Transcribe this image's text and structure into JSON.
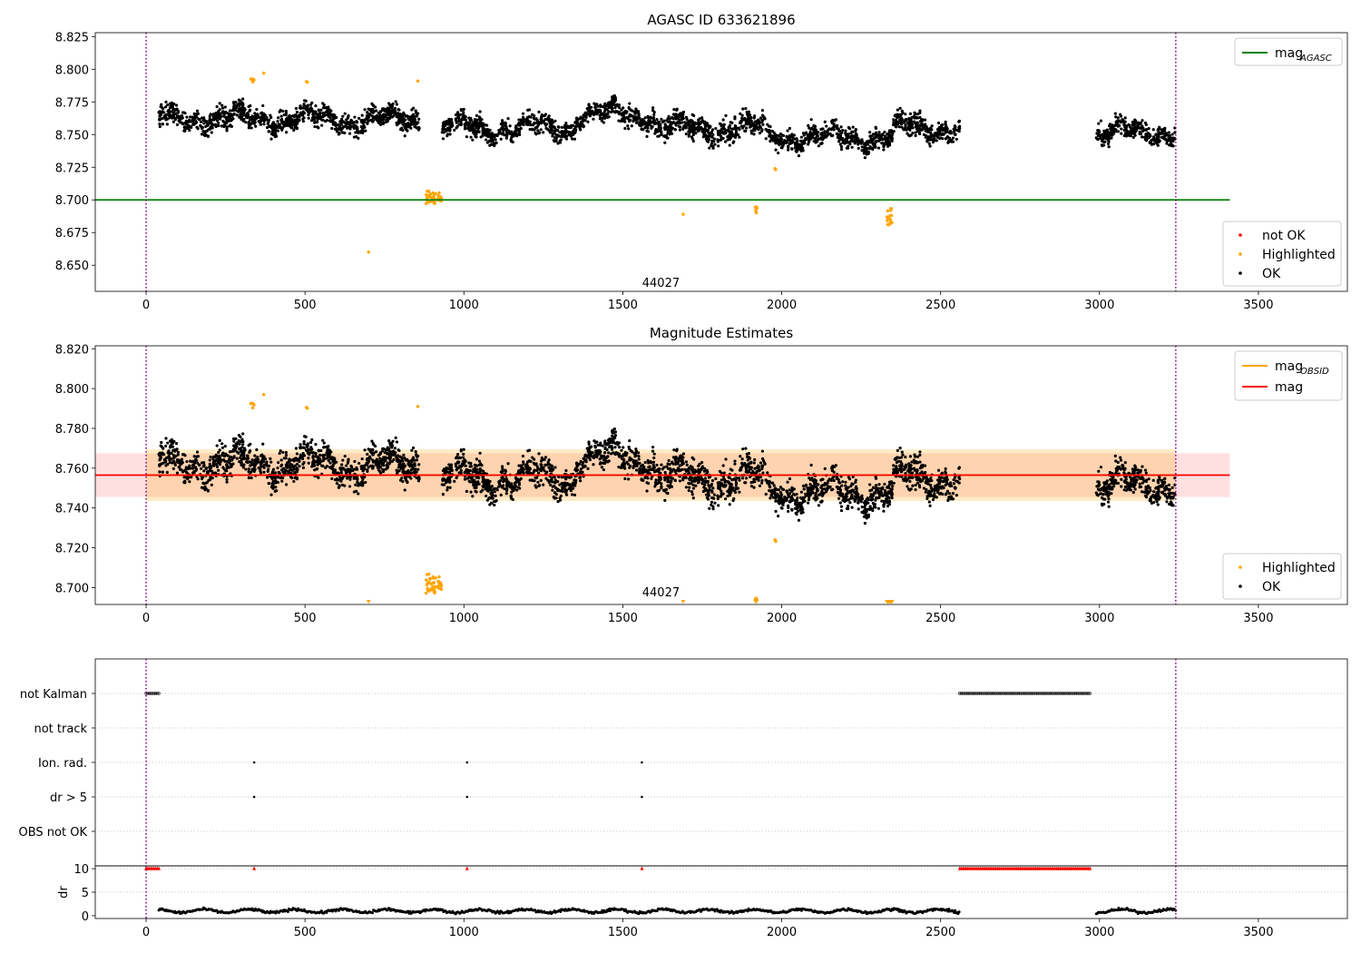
{
  "chart_data": [
    {
      "type": "scatter",
      "title": "AGASC ID 633621896",
      "xlim": [
        -160,
        3780
      ],
      "ylim": [
        8.63,
        8.828
      ],
      "xticks": [
        0,
        500,
        1000,
        1500,
        2000,
        2500,
        3000,
        3500
      ],
      "yticks": [
        8.65,
        8.675,
        8.7,
        8.725,
        8.75,
        8.775,
        8.8,
        8.825
      ],
      "ytick_labels": [
        "8.650",
        "8.675",
        "8.700",
        "8.725",
        "8.750",
        "8.775",
        "8.800",
        "8.825"
      ],
      "obsid_boundaries": [
        0,
        3240
      ],
      "annotation": {
        "text": "44027",
        "x": 1620,
        "y": 8.6335
      },
      "lines": [
        {
          "name": "mag",
          "sub": "AGASC",
          "color": "#008000",
          "y": 8.7,
          "x": [
            -160,
            3410
          ]
        }
      ],
      "series": [
        {
          "name": "not OK",
          "color": "#ff0000"
        },
        {
          "name": "Highlighted",
          "color": "#ffa500"
        },
        {
          "name": "OK",
          "color": "#000000"
        }
      ],
      "legend_lines_position": "upper-right",
      "legend_points_position": "lower-right",
      "ok_segments": [
        {
          "x0": 40,
          "x1": 860,
          "center": 8.762,
          "spread": 0.01
        },
        {
          "x0": 930,
          "x1": 1350,
          "center": 8.755,
          "spread": 0.009
        },
        {
          "x0": 1350,
          "x1": 1600,
          "center": 8.765,
          "spread": 0.009
        },
        {
          "x0": 1600,
          "x1": 1950,
          "center": 8.755,
          "spread": 0.011
        },
        {
          "x0": 1950,
          "x1": 2350,
          "center": 8.748,
          "spread": 0.009
        },
        {
          "x0": 2350,
          "x1": 2560,
          "center": 8.755,
          "spread": 0.01
        },
        {
          "x0": 2990,
          "x1": 3240,
          "center": 8.752,
          "spread": 0.009
        }
      ],
      "highlighted_clusters": [
        {
          "x": 905,
          "y": 8.702,
          "count": 45,
          "dx": 25,
          "dy": 0.005
        },
        {
          "x": 2340,
          "y": 8.687,
          "count": 22,
          "dx": 9,
          "dy": 0.007
        },
        {
          "x": 1920,
          "y": 8.69,
          "count": 6,
          "dx": 3,
          "dy": 0.006
        },
        {
          "x": 335,
          "y": 8.793,
          "count": 5,
          "dx": 8,
          "dy": 0.003
        },
        {
          "x": 505,
          "y": 8.791,
          "count": 3,
          "dx": 4,
          "dy": 0.001
        },
        {
          "x": 700,
          "y": 8.66,
          "count": 1,
          "dx": 0,
          "dy": 0
        },
        {
          "x": 1690,
          "y": 8.689,
          "count": 1,
          "dx": 0,
          "dy": 0
        },
        {
          "x": 1980,
          "y": 8.723,
          "count": 2,
          "dx": 3,
          "dy": 0.001
        },
        {
          "x": 855,
          "y": 8.791,
          "count": 1,
          "dx": 0,
          "dy": 0
        },
        {
          "x": 370,
          "y": 8.797,
          "count": 1,
          "dx": 0,
          "dy": 0
        }
      ]
    },
    {
      "type": "scatter",
      "title": "Magnitude Estimates",
      "xlim": [
        -160,
        3780
      ],
      "ylim": [
        8.6915,
        8.8215
      ],
      "xticks": [
        0,
        500,
        1000,
        1500,
        2000,
        2500,
        3000,
        3500
      ],
      "yticks": [
        8.7,
        8.72,
        8.74,
        8.76,
        8.78,
        8.8,
        8.82
      ],
      "ytick_labels": [
        "8.700",
        "8.720",
        "8.740",
        "8.760",
        "8.780",
        "8.800",
        "8.820"
      ],
      "obsid_boundaries": [
        0,
        3240
      ],
      "annotation": {
        "text": "44027",
        "x": 1620,
        "y": 8.6955
      },
      "lines": [
        {
          "name": "mag",
          "sub": "OBSID",
          "color": "#ffa500",
          "y": 8.7565,
          "x": [
            0,
            3240
          ]
        },
        {
          "name": "mag",
          "sub": "",
          "color": "#ff0000",
          "y": 8.7565,
          "x": [
            -160,
            3410
          ]
        }
      ],
      "bands": [
        {
          "color": "#ff0000",
          "opacity": 0.12,
          "y0": 8.7455,
          "y1": 8.7675,
          "x": [
            -160,
            3410
          ]
        },
        {
          "color": "#ffa500",
          "opacity": 0.22,
          "y0": 8.7435,
          "y1": 8.7695,
          "x": [
            0,
            3240
          ]
        }
      ],
      "series": [
        {
          "name": "Highlighted",
          "color": "#ffa500"
        },
        {
          "name": "OK",
          "color": "#000000"
        }
      ],
      "legend_lines_position": "upper-right",
      "legend_points_position": "lower-right"
    },
    {
      "type": "scatter",
      "title": "",
      "xlim": [
        -160,
        3780
      ],
      "categories": [
        "not Kalman",
        "not track",
        "Ion. rad.",
        "dr > 5",
        "OBS not OK"
      ],
      "obsid_boundaries": [
        0,
        3240
      ],
      "flags": {
        "not Kalman": [
          [
            0,
            40
          ],
          [
            2560,
            2970
          ]
        ],
        "not track": [],
        "Ion. rad.": [
          [
            340,
            340
          ],
          [
            1010,
            1010
          ],
          [
            1560,
            1560
          ]
        ],
        "dr > 5": [
          [
            340,
            340
          ],
          [
            1010,
            1010
          ],
          [
            1560,
            1560
          ]
        ],
        "OBS not OK": []
      }
    },
    {
      "type": "scatter",
      "title": "",
      "ylabel": "dr",
      "xlim": [
        -160,
        3780
      ],
      "ylim": [
        -0.6,
        10.6
      ],
      "xticks": [
        0,
        500,
        1000,
        1500,
        2000,
        2500,
        3000,
        3500
      ],
      "yticks": [
        0,
        5,
        10
      ],
      "ytick_labels": [
        "0",
        "5",
        "10"
      ],
      "obsid_boundaries": [
        0,
        3240
      ],
      "clipped_markers_at": 10,
      "clipped_x": [
        [
          0,
          40
        ],
        [
          340,
          340
        ],
        [
          1010,
          1010
        ],
        [
          1560,
          1560
        ],
        [
          2560,
          2970
        ]
      ],
      "dr_segments": [
        [
          40,
          2560
        ],
        [
          2990,
          3240
        ]
      ],
      "dr_center": 1.0,
      "dr_spread": 0.5
    }
  ]
}
